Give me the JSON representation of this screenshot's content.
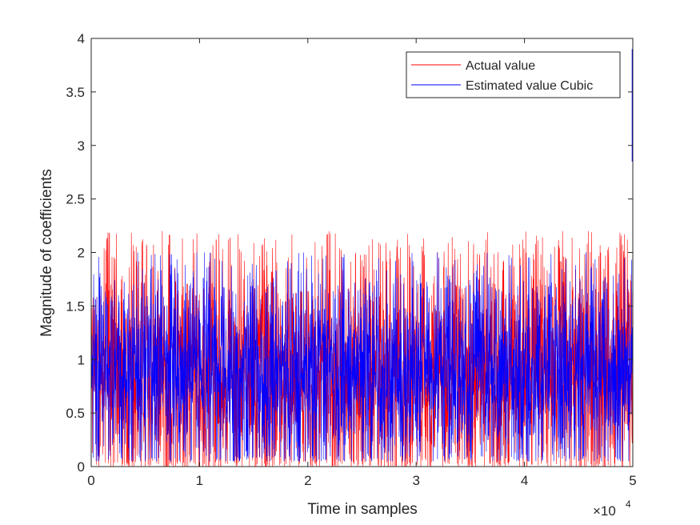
{
  "chart_data": {
    "type": "line",
    "xlabel": "Time in samples",
    "ylabel": "Magnitude of coefficients",
    "xlim": [
      0,
      50000
    ],
    "ylim": [
      0,
      4
    ],
    "x_exponent_label": "×10",
    "x_exponent_power": "4",
    "xticks": [
      0,
      10000,
      20000,
      30000,
      40000,
      50000
    ],
    "xtick_labels": [
      "0",
      "1",
      "2",
      "3",
      "4",
      "5"
    ],
    "yticks": [
      0,
      0.5,
      1,
      1.5,
      2,
      2.5,
      3,
      3.5,
      4
    ],
    "ytick_labels": [
      "0",
      "0.5",
      "1",
      "1.5",
      "2",
      "2.5",
      "3",
      "3.5",
      "4"
    ],
    "grid": false,
    "legend_position": "top-right",
    "series": [
      {
        "name": "Actual value",
        "color": "#ff0000",
        "style": "dense noisy signal",
        "typical_range": [
          0.0,
          1.9
        ],
        "peak_max": 2.2,
        "mean": 0.88
      },
      {
        "name": "Estimated value Cubic",
        "color": "#0000ff",
        "style": "dense noisy signal",
        "typical_range": [
          0.05,
          1.6
        ],
        "peak_max": 2.0,
        "mean": 0.88,
        "final_spike": [
          2.85,
          3.9
        ]
      }
    ]
  }
}
